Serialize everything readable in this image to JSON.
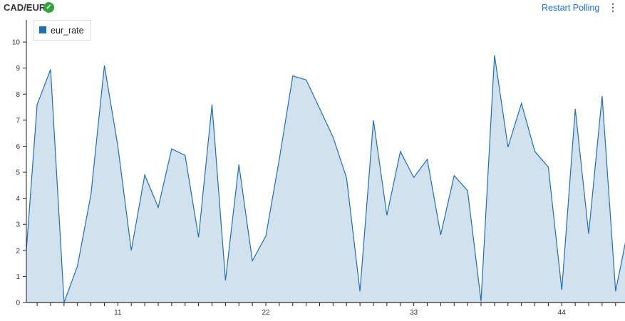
{
  "header": {
    "title": "CAD/EUR",
    "status_icon": "check-circle-icon",
    "status_color": "#2ea63a",
    "restart_label": "Restart Polling",
    "menu_icon": "kebab-menu-icon"
  },
  "chart_data": {
    "type": "area",
    "title": "",
    "xlabel": "",
    "ylabel": "",
    "xlim": [
      4.2,
      48.7
    ],
    "ylim": [
      0,
      10.85
    ],
    "x_ticks_labeled": [
      11,
      22,
      33,
      44
    ],
    "y_ticks": [
      0,
      1,
      2,
      3,
      4,
      5,
      6,
      7,
      8,
      9,
      10
    ],
    "grid": false,
    "legend": {
      "position": "top-left",
      "entries": [
        "eur_rate"
      ]
    },
    "colors": {
      "line": "#1f6fb4",
      "fill": "#d1e1ee"
    },
    "series": [
      {
        "name": "eur_rate",
        "x": [
          4,
          5,
          6,
          7,
          8,
          9,
          10,
          11,
          12,
          13,
          14,
          15,
          16,
          17,
          18,
          19,
          20,
          21,
          22,
          23,
          24,
          25,
          26,
          27,
          28,
          29,
          30,
          31,
          32,
          33,
          34,
          35,
          36,
          37,
          38,
          39,
          40,
          41,
          42,
          43,
          44,
          45,
          46,
          47,
          48,
          49
        ],
        "values": [
          0.6,
          7.6,
          8.95,
          0.0,
          1.4,
          4.15,
          9.1,
          6.0,
          2.0,
          4.9,
          3.65,
          5.9,
          5.65,
          2.5,
          7.6,
          0.85,
          5.3,
          1.6,
          2.55,
          5.5,
          8.7,
          8.55,
          7.45,
          6.35,
          4.78,
          0.43,
          7.0,
          3.35,
          5.8,
          4.8,
          5.5,
          2.6,
          4.87,
          4.3,
          0.05,
          9.5,
          5.97,
          7.65,
          5.8,
          5.2,
          0.48,
          7.43,
          2.64,
          7.93,
          0.43,
          3.0
        ]
      }
    ]
  }
}
